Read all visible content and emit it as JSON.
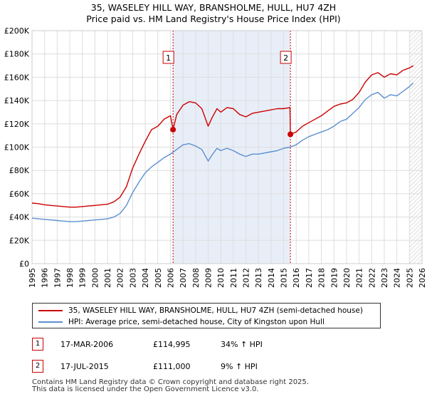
{
  "title_line1": "35, WASELEY HILL WAY, BRANSHOLME, HULL, HU7 4ZH",
  "title_line2": "Price paid vs. HM Land Registry's House Price Index (HPI)",
  "colors": {
    "property": "#cc0000",
    "hpi": "#5b8fd0",
    "shade": "#e8eef8",
    "grid": "#dddddd"
  },
  "chart_data": {
    "type": "line",
    "ylim": [
      0,
      200000
    ],
    "xlim": [
      1995,
      2026
    ],
    "y_ticks": [
      0,
      20000,
      40000,
      60000,
      80000,
      100000,
      120000,
      140000,
      160000,
      180000,
      200000
    ],
    "y_tick_labels": [
      "£0",
      "£20K",
      "£40K",
      "£60K",
      "£80K",
      "£100K",
      "£120K",
      "£140K",
      "£160K",
      "£180K",
      "£200K"
    ],
    "x_ticks": [
      1995,
      1996,
      1997,
      1998,
      1999,
      2000,
      2001,
      2002,
      2003,
      2004,
      2005,
      2006,
      2007,
      2008,
      2009,
      2010,
      2011,
      2012,
      2013,
      2014,
      2015,
      2016,
      2017,
      2018,
      2019,
      2020,
      2021,
      2022,
      2023,
      2024,
      2025,
      2026
    ],
    "shaded_region": [
      2006.21,
      2015.54
    ],
    "hatched_from": 2025.0,
    "series": [
      {
        "name": "35, WASELEY HILL WAY, BRANSHOLME, HULL, HU7 4ZH (semi-detached house)",
        "x": [
          1995.0,
          1995.5,
          1996.0,
          1996.5,
          1997.0,
          1997.5,
          1998.0,
          1998.5,
          1999.0,
          1999.5,
          2000.0,
          2000.5,
          2001.0,
          2001.5,
          2002.0,
          2002.5,
          2003.0,
          2003.5,
          2004.0,
          2004.5,
          2005.0,
          2005.5,
          2006.0,
          2006.21,
          2006.5,
          2007.0,
          2007.5,
          2008.0,
          2008.5,
          2009.0,
          2009.3,
          2009.7,
          2010.0,
          2010.5,
          2011.0,
          2011.5,
          2012.0,
          2012.5,
          2013.0,
          2013.5,
          2014.0,
          2014.5,
          2015.0,
          2015.5,
          2015.54,
          2016.0,
          2016.5,
          2017.0,
          2017.5,
          2018.0,
          2018.5,
          2019.0,
          2019.5,
          2020.0,
          2020.5,
          2021.0,
          2021.5,
          2022.0,
          2022.5,
          2023.0,
          2023.5,
          2024.0,
          2024.5,
          2025.0,
          2025.3
        ],
        "values": [
          52000,
          51500,
          50500,
          50000,
          49500,
          49000,
          48500,
          48500,
          49000,
          49500,
          50000,
          50500,
          51000,
          53000,
          57000,
          66000,
          82000,
          94000,
          105000,
          115000,
          118000,
          124000,
          127000,
          114995,
          128000,
          136000,
          139000,
          138000,
          133000,
          118000,
          125000,
          133000,
          130000,
          134000,
          133000,
          128000,
          126000,
          129000,
          130000,
          131000,
          132000,
          133000,
          133000,
          134000,
          111000,
          113000,
          118000,
          121000,
          124000,
          127000,
          131000,
          135000,
          137000,
          138000,
          141000,
          147000,
          156000,
          162000,
          164000,
          160000,
          163000,
          162000,
          166000,
          168000,
          170000
        ]
      },
      {
        "name": "HPI: Average price, semi-detached house, City of Kingston upon Hull",
        "x": [
          1995.0,
          1995.5,
          1996.0,
          1996.5,
          1997.0,
          1997.5,
          1998.0,
          1998.5,
          1999.0,
          1999.5,
          2000.0,
          2000.5,
          2001.0,
          2001.5,
          2002.0,
          2002.5,
          2003.0,
          2003.5,
          2004.0,
          2004.5,
          2005.0,
          2005.5,
          2006.0,
          2006.5,
          2007.0,
          2007.5,
          2008.0,
          2008.5,
          2009.0,
          2009.3,
          2009.7,
          2010.0,
          2010.5,
          2011.0,
          2011.5,
          2012.0,
          2012.5,
          2013.0,
          2013.5,
          2014.0,
          2014.5,
          2015.0,
          2015.5,
          2016.0,
          2016.5,
          2017.0,
          2017.5,
          2018.0,
          2018.5,
          2019.0,
          2019.5,
          2020.0,
          2020.5,
          2021.0,
          2021.5,
          2022.0,
          2022.5,
          2023.0,
          2023.5,
          2024.0,
          2024.5,
          2025.0,
          2025.3
        ],
        "values": [
          39000,
          38500,
          38000,
          37500,
          37000,
          36500,
          36000,
          36000,
          36500,
          37000,
          37500,
          38000,
          38500,
          40000,
          43000,
          50000,
          61000,
          70000,
          78000,
          83000,
          87000,
          91000,
          94000,
          98000,
          102000,
          103000,
          101000,
          98000,
          88000,
          93000,
          99000,
          97000,
          99000,
          97000,
          94000,
          92000,
          94000,
          94000,
          95000,
          96000,
          97000,
          99000,
          100000,
          102000,
          106000,
          109000,
          111000,
          113000,
          115000,
          118000,
          122000,
          124000,
          129000,
          134000,
          141000,
          145000,
          147000,
          142000,
          145000,
          144000,
          148000,
          152000,
          155000
        ]
      }
    ],
    "sales": [
      {
        "label": "1",
        "x": 2006.21,
        "value": 114995
      },
      {
        "label": "2",
        "x": 2015.54,
        "value": 111000
      }
    ]
  },
  "legend": {
    "property_label": "35, WASELEY HILL WAY, BRANSHOLME, HULL, HU7 4ZH (semi-detached house)",
    "hpi_label": "HPI: Average price, semi-detached house, City of Kingston upon Hull"
  },
  "sales_table": [
    {
      "num": "1",
      "date": "17-MAR-2006",
      "price": "£114,995",
      "hpi": "34% ↑ HPI"
    },
    {
      "num": "2",
      "date": "17-JUL-2015",
      "price": "£111,000",
      "hpi": "9% ↑ HPI"
    }
  ],
  "footer": {
    "line1": "Contains HM Land Registry data © Crown copyright and database right 2025.",
    "line2": "This data is licensed under the Open Government Licence v3.0."
  }
}
